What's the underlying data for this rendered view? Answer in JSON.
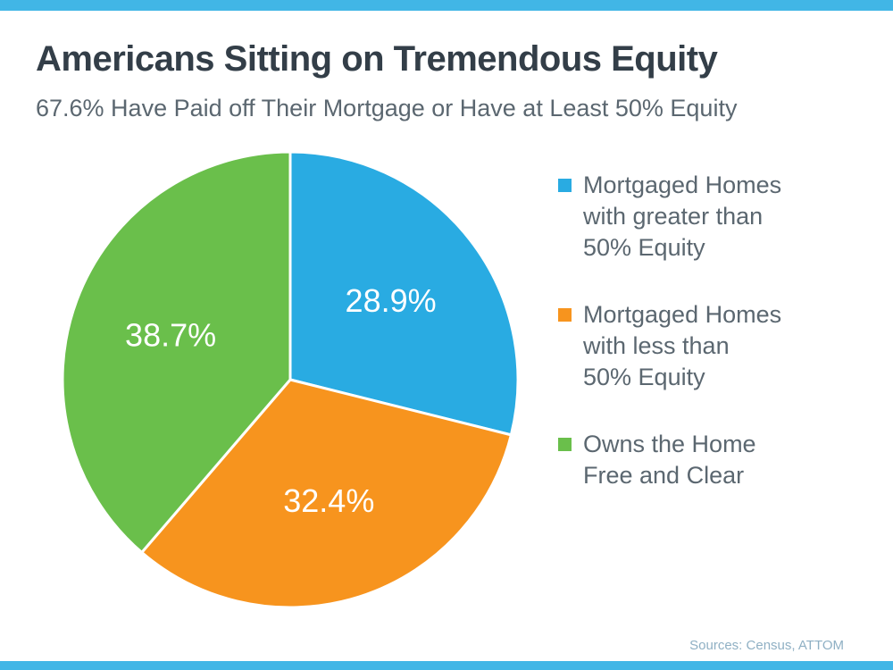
{
  "header": {
    "title": "Americans Sitting on Tremendous Equity",
    "subtitle": "67.6% Have Paid off Their Mortgage or Have at Least 50% Equity"
  },
  "chart_data": {
    "type": "pie",
    "title": "Americans Sitting on Tremendous Equity",
    "subtitle": "67.6% Have Paid off Their Mortgage or Have at Least 50% Equity",
    "labels": [
      "Mortgaged Homes with greater than 50% Equity",
      "Mortgaged Homes with less than 50% Equity",
      "Owns the Home Free and Clear"
    ],
    "values": [
      28.9,
      32.4,
      38.7
    ],
    "slice_labels": [
      "28.9%",
      "32.4%",
      "38.7%"
    ],
    "colors": [
      "#29abe2",
      "#f7941e",
      "#6abf4b"
    ],
    "start_angle_deg": 0,
    "direction": "clockwise",
    "legend_position": "right",
    "slice_label_color": "#ffffff"
  },
  "legend": {
    "items": [
      {
        "label": "Mortgaged Homes\nwith greater than\n50% Equity",
        "color": "#29abe2"
      },
      {
        "label": "Mortgaged Homes\nwith less than\n50% Equity",
        "color": "#f7941e"
      },
      {
        "label": "Owns the Home\nFree and Clear",
        "color": "#6abf4b"
      }
    ]
  },
  "footer": {
    "source": "Sources: Census, ATTOM"
  },
  "theme": {
    "accent_strip": "#41b6e6",
    "title_color": "#333e48",
    "text_color": "#5b6770",
    "source_color": "#8fb0c4"
  }
}
